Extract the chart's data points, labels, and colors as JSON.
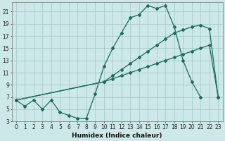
{
  "xlabel": "Humidex (Indice chaleur)",
  "bg_color": "#cce8e8",
  "grid_color": "#aacccc",
  "line_color": "#1a6b5a",
  "xlim": [
    -0.5,
    23.5
  ],
  "ylim": [
    3,
    22.5
  ],
  "yticks": [
    3,
    5,
    7,
    9,
    11,
    13,
    15,
    17,
    19,
    21
  ],
  "xticks": [
    0,
    1,
    2,
    3,
    4,
    5,
    6,
    7,
    8,
    9,
    10,
    11,
    12,
    13,
    14,
    15,
    16,
    17,
    18,
    19,
    20,
    21,
    22,
    23
  ],
  "xlabel_fontsize": 6.5,
  "tick_fontsize": 5.5,
  "line1_x": [
    0,
    1,
    2,
    3,
    4,
    5,
    6,
    7,
    8,
    9,
    10,
    11,
    12,
    13,
    14,
    15,
    16,
    17,
    18,
    19,
    20,
    21
  ],
  "line1_y": [
    6.5,
    5.5,
    6.5,
    5.0,
    6.5,
    4.5,
    4.0,
    3.5,
    3.5,
    7.5,
    12.0,
    15.0,
    17.5,
    20.0,
    20.5,
    22.0,
    21.5,
    22.0,
    18.5,
    13.0,
    9.5,
    7.0
  ],
  "line2_x": [
    0,
    10,
    11,
    12,
    13,
    14,
    15,
    16,
    17,
    18,
    19,
    20,
    21,
    22,
    23
  ],
  "line2_y": [
    6.5,
    9.5,
    10.5,
    11.5,
    12.5,
    13.5,
    14.5,
    15.5,
    16.5,
    17.5,
    18.0,
    18.5,
    18.8,
    18.2,
    7.0
  ],
  "line3_x": [
    0,
    10,
    11,
    12,
    13,
    14,
    15,
    16,
    17,
    18,
    19,
    20,
    21,
    22,
    23
  ],
  "line3_y": [
    6.5,
    9.5,
    10.0,
    10.5,
    11.0,
    11.5,
    12.0,
    12.5,
    13.0,
    13.5,
    14.0,
    14.5,
    15.0,
    15.5,
    7.0
  ]
}
